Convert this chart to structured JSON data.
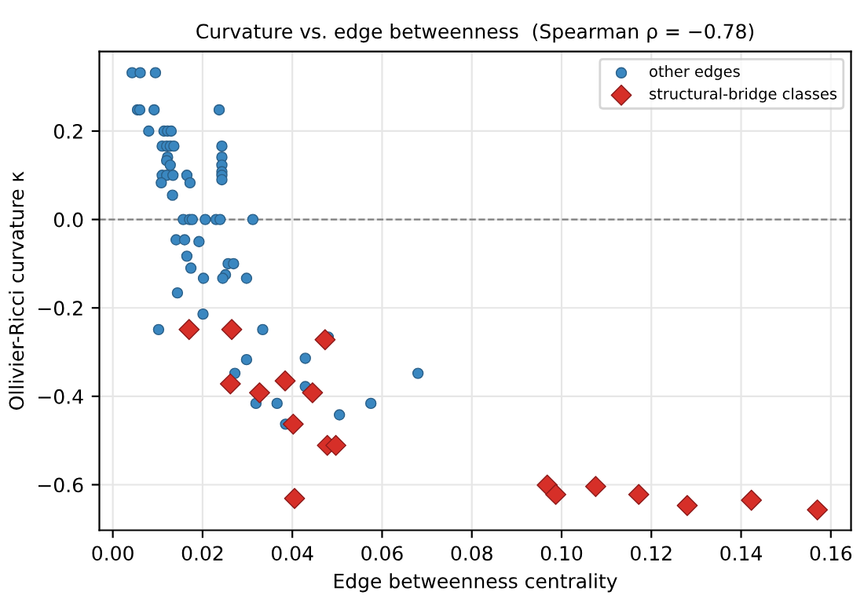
{
  "chart_data": {
    "type": "scatter",
    "title": "Curvature vs. edge betweenness  (Spearman ρ = −0.78)",
    "xlabel": "Edge betweenness centrality",
    "ylabel": "Ollivier-Ricci curvature κ",
    "xlim": [
      -0.003,
      0.1645
    ],
    "ylim": [
      -0.703,
      0.38
    ],
    "xticks": [
      {
        "value": 0,
        "label": "0.00"
      },
      0.02,
      0.04,
      0.06,
      0.08,
      {
        "value": 0.1,
        "label": "0.10"
      },
      0.12,
      0.14,
      0.16
    ],
    "yticks": [
      {
        "value": -0.6,
        "label": "−0.6"
      },
      {
        "value": -0.4,
        "label": "−0.4"
      },
      {
        "value": -0.2,
        "label": "−0.2"
      },
      {
        "value": 0,
        "label": "0.0"
      },
      0.2
    ],
    "grid": true,
    "legend": "top right",
    "ref_lines": [
      {
        "axis": "y",
        "value": 0,
        "color": "#808080",
        "line_style": "dashed"
      }
    ],
    "series": [
      {
        "name": "other edges",
        "color": "#3a87c0",
        "marker": "circle",
        "x": [
          0.0043,
          0.0061,
          0.0095,
          0.0055,
          0.006,
          0.0092,
          0.0237,
          0.008,
          0.0114,
          0.0122,
          0.013,
          0.011,
          0.012,
          0.0128,
          0.0136,
          0.0122,
          0.012,
          0.0128,
          0.011,
          0.012,
          0.0134,
          0.0165,
          0.0108,
          0.0172,
          0.0133,
          0.0243,
          0.0243,
          0.0243,
          0.0243,
          0.0243,
          0.0243,
          0.0157,
          0.0171,
          0.0177,
          0.0206,
          0.023,
          0.0239,
          0.0312,
          0.0141,
          0.016,
          0.0192,
          0.0165,
          0.0174,
          0.0257,
          0.0269,
          0.0251,
          0.0245,
          0.0202,
          0.0298,
          0.0144,
          0.0201,
          0.0102,
          0.0334,
          0.0298,
          0.0272,
          0.0429,
          0.0429,
          0.0319,
          0.0366,
          0.0575,
          0.0505,
          0.0385,
          0.068,
          0.048
        ],
        "values": [
          0.332,
          0.332,
          0.332,
          0.248,
          0.248,
          0.248,
          0.248,
          0.2,
          0.2,
          0.2,
          0.2,
          0.166,
          0.166,
          0.166,
          0.166,
          0.141,
          0.133,
          0.123,
          0.1,
          0.1,
          0.1,
          0.1,
          0.083,
          0.083,
          0.055,
          0.166,
          0.141,
          0.123,
          0.108,
          0.1,
          0.09,
          0,
          0,
          0,
          0,
          0,
          0,
          0,
          -0.046,
          -0.046,
          -0.05,
          -0.083,
          -0.11,
          -0.1,
          -0.1,
          -0.125,
          -0.133,
          -0.133,
          -0.133,
          -0.166,
          -0.214,
          -0.249,
          -0.249,
          -0.317,
          -0.348,
          -0.314,
          -0.378,
          -0.416,
          -0.416,
          -0.416,
          -0.442,
          -0.463,
          -0.348,
          -0.266
        ]
      },
      {
        "name": "structural-bridge classes",
        "color": "#d62f28",
        "marker": "diamond",
        "x": [
          0.017,
          0.0265,
          0.0473,
          0.0262,
          0.0327,
          0.0384,
          0.0445,
          0.0402,
          0.0478,
          0.0497,
          0.0405,
          0.0968,
          0.0987,
          0.1076,
          0.1172,
          0.128,
          0.1423,
          0.157
        ],
        "values": [
          -0.249,
          -0.249,
          -0.272,
          -0.372,
          -0.392,
          -0.365,
          -0.392,
          -0.463,
          -0.511,
          -0.511,
          -0.631,
          -0.601,
          -0.622,
          -0.604,
          -0.622,
          -0.647,
          -0.635,
          -0.657
        ]
      }
    ]
  }
}
